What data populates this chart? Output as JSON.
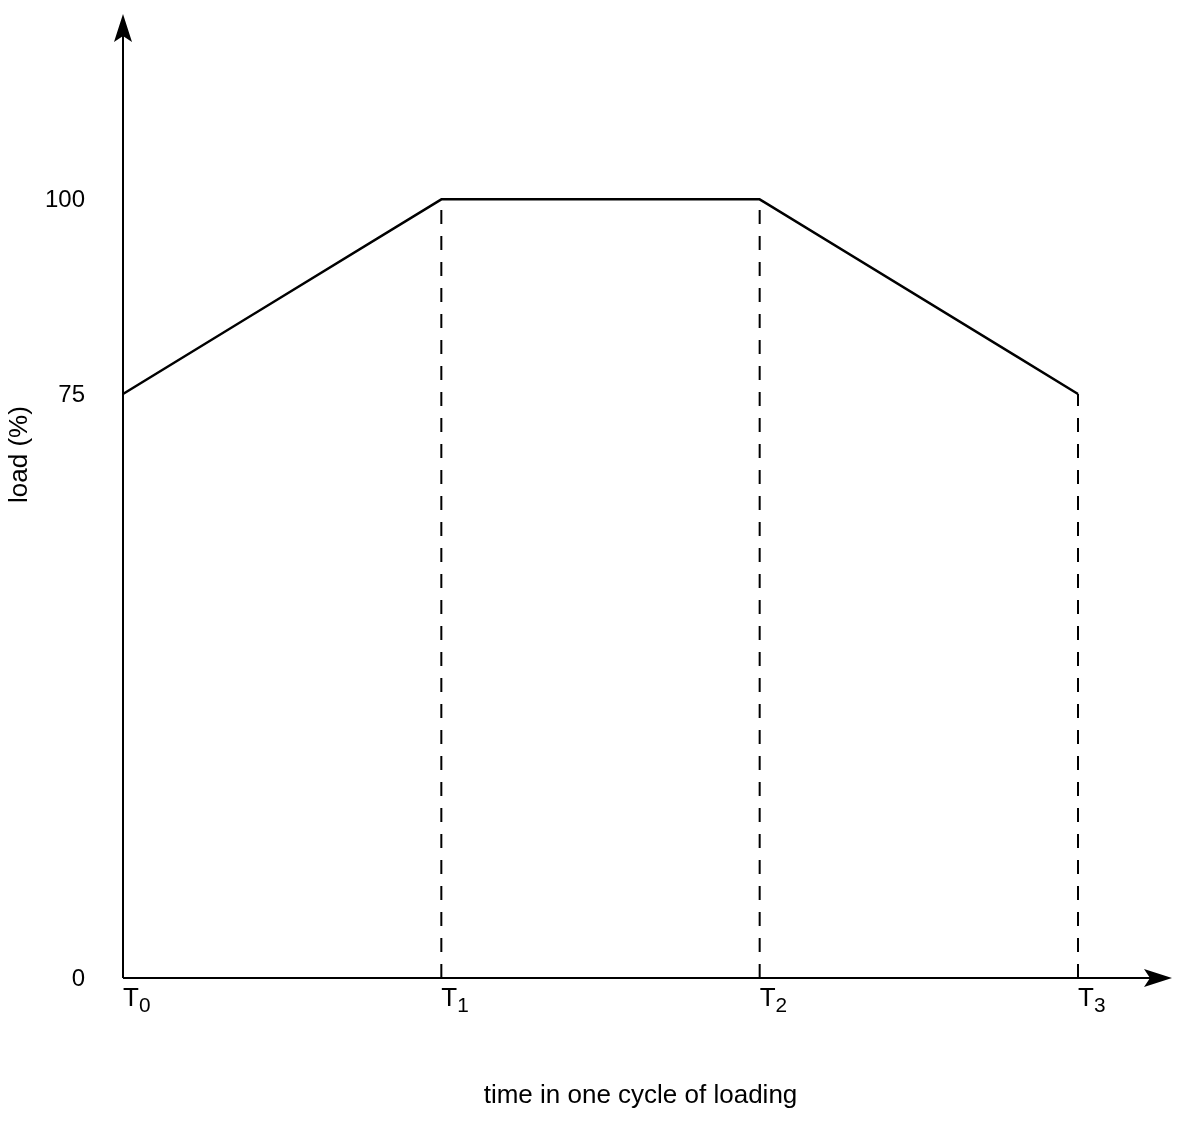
{
  "chart_data": {
    "type": "line",
    "xlabel": "time in one cycle of loading",
    "ylabel": "load (%)",
    "categories": [
      "T$_{0}$",
      "T$_{1}$",
      "T$_{2}$",
      "T$_{3}$"
    ],
    "series": [
      {
        "color": "#000000",
        "values": [
          75,
          100,
          100,
          75
        ]
      }
    ],
    "ylim": [
      0,
      122
    ],
    "yticks": [
      0,
      75,
      100
    ],
    "ref_lines": [
      {
        "axis": "x",
        "value": "T$_{1}$",
        "color": "#000000",
        "line_style": "dashed"
      },
      {
        "axis": "x",
        "value": "T$_{2}$",
        "color": "#000000",
        "line_style": "dashed"
      },
      {
        "axis": "x",
        "value": "T$_{3}$",
        "color": "#000000",
        "line_style": "dashed"
      }
    ],
    "grid": false,
    "legend": false,
    "marker": "none",
    "line_style": "solid"
  }
}
